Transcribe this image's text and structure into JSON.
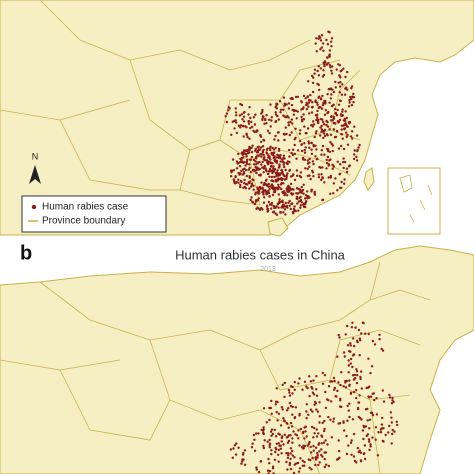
{
  "north_arrow": {
    "label": "N"
  },
  "legend": {
    "items": [
      {
        "label": "Human rabies case",
        "color": "#8b1a1a"
      },
      {
        "label": "Province boundary",
        "color": "#c9b24a"
      }
    ]
  },
  "panel_b": {
    "letter": "b",
    "title": "Human rabies cases in China",
    "subtitle": "2013"
  }
}
